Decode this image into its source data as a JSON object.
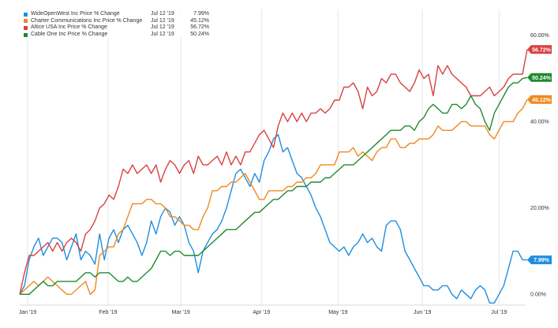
{
  "chart_data": {
    "type": "line",
    "title": "",
    "xlabel": "",
    "ylabel": "",
    "x_tick_labels": [
      "Jan '19",
      "Feb '19",
      "Mar '19",
      "Apr '19",
      "May '19",
      "Jun '19",
      "Jul '19"
    ],
    "y_tick_labels": [
      "0.00%",
      "20.00%",
      "40.00%",
      "60.00%"
    ],
    "y_ticks": [
      0,
      20,
      40,
      60
    ],
    "ylim": [
      -2.5,
      66
    ],
    "grid": "vertical",
    "legend_position": "top-left",
    "series": [
      {
        "name": "WideOpenWest Inc Price % Change",
        "date": "Jul 12 '19",
        "value_label": "7.99%",
        "last": 7.99,
        "color": "#1f8ee0",
        "values": [
          0,
          2,
          8,
          11,
          13,
          9,
          11,
          13,
          13,
          12,
          8,
          11,
          14,
          8,
          10,
          9,
          7,
          14,
          8,
          13,
          15,
          12,
          15,
          16,
          14,
          12,
          9,
          12,
          17,
          14,
          18,
          20,
          19,
          16,
          18,
          16,
          12,
          10,
          5,
          10,
          12,
          14,
          15,
          17,
          20,
          24,
          28,
          29,
          27,
          25,
          28,
          26,
          31,
          33,
          36,
          37,
          33,
          34,
          31,
          28,
          27,
          25,
          23,
          20,
          18,
          15,
          12,
          11,
          10,
          11,
          9,
          11,
          12,
          14,
          12,
          13,
          11,
          10,
          16,
          17,
          17,
          15,
          10,
          8,
          6,
          4,
          2,
          2,
          1,
          1,
          2,
          2,
          0,
          -1,
          1,
          0,
          -1,
          1,
          2,
          1,
          -2,
          -2,
          0,
          2,
          6,
          10,
          10,
          8,
          7.99
        ]
      },
      {
        "name": "Charter Communications Inc Price % Change",
        "date": "Jul 12 '19",
        "value_label": "45.12%",
        "last": 45.12,
        "color": "#f0891e",
        "values": [
          0,
          1,
          2,
          3,
          2,
          3,
          4,
          3,
          2,
          1,
          0,
          0,
          1,
          2,
          3,
          0,
          1,
          9,
          10,
          11,
          11,
          14,
          15,
          18,
          21,
          21,
          21,
          22,
          22,
          21,
          21,
          20,
          18,
          18,
          17,
          16,
          16,
          15,
          15,
          18,
          20,
          24,
          24,
          25,
          25,
          26,
          26,
          27,
          28,
          26,
          24,
          22,
          22,
          24,
          24,
          24,
          24,
          25,
          25,
          26,
          26,
          27,
          27,
          28,
          30,
          30,
          30,
          30,
          33,
          33,
          33,
          34,
          32,
          33,
          32,
          31,
          33,
          34,
          34,
          36,
          36,
          34,
          34,
          35,
          35,
          36,
          36,
          36,
          37,
          39,
          38,
          38,
          38,
          39,
          40,
          40,
          39,
          39,
          39,
          39,
          37,
          36,
          38,
          40,
          40,
          40,
          42,
          43,
          45.12
        ]
      },
      {
        "name": "Altice USA Inc Price % Change",
        "date": "Jul 12 '19",
        "value_label": "56.72%",
        "last": 56.72,
        "color": "#d94040",
        "values": [
          0,
          5,
          9,
          9,
          10,
          11,
          12,
          10,
          12,
          10,
          12,
          13,
          12,
          10,
          14,
          15,
          17,
          20,
          21,
          23,
          22,
          25,
          29,
          28,
          30,
          28,
          29,
          30,
          28,
          30,
          26,
          29,
          31,
          30,
          28,
          30,
          31,
          28,
          32,
          30,
          30,
          31,
          32,
          30,
          33,
          30,
          32,
          30,
          33,
          33,
          35,
          37,
          38,
          36,
          34,
          39,
          42,
          40,
          42,
          40,
          42,
          40,
          42,
          42,
          43,
          42,
          43,
          45,
          45,
          48,
          48,
          49,
          47,
          43,
          48,
          46,
          47,
          50,
          49,
          51,
          51,
          49,
          48,
          47,
          49,
          52,
          50,
          51,
          46,
          53,
          51,
          53,
          51,
          50,
          49,
          48,
          46,
          46,
          46,
          47,
          48,
          46,
          47,
          48,
          50,
          51,
          51,
          51,
          56.72
        ]
      },
      {
        "name": "Cable One Inc Price % Change",
        "date": "Jul 12 '19",
        "value_label": "50.24%",
        "last": 50.24,
        "color": "#1e8a2e",
        "values": [
          0,
          0,
          0,
          1,
          2,
          3,
          2,
          2,
          3,
          3,
          3,
          3,
          3,
          4,
          5,
          5,
          4,
          5,
          5,
          5,
          4,
          3,
          3,
          4,
          3,
          3,
          4,
          5,
          6,
          8,
          10,
          10,
          9,
          10,
          10,
          9,
          9,
          9,
          9,
          10,
          11,
          12,
          13,
          14,
          15,
          15,
          15,
          16,
          17,
          18,
          19,
          19,
          20,
          21,
          22,
          22,
          23,
          24,
          24,
          25,
          25,
          25,
          26,
          26,
          26,
          27,
          27,
          28,
          29,
          30,
          30,
          30,
          31,
          32,
          33,
          34,
          35,
          36,
          37,
          38,
          38,
          38,
          39,
          39,
          38,
          40,
          41,
          43,
          44,
          43,
          42,
          42,
          44,
          44,
          43,
          44,
          46,
          44,
          43,
          40,
          38,
          42,
          44,
          46,
          48,
          49,
          49,
          50,
          50.24
        ]
      }
    ]
  }
}
